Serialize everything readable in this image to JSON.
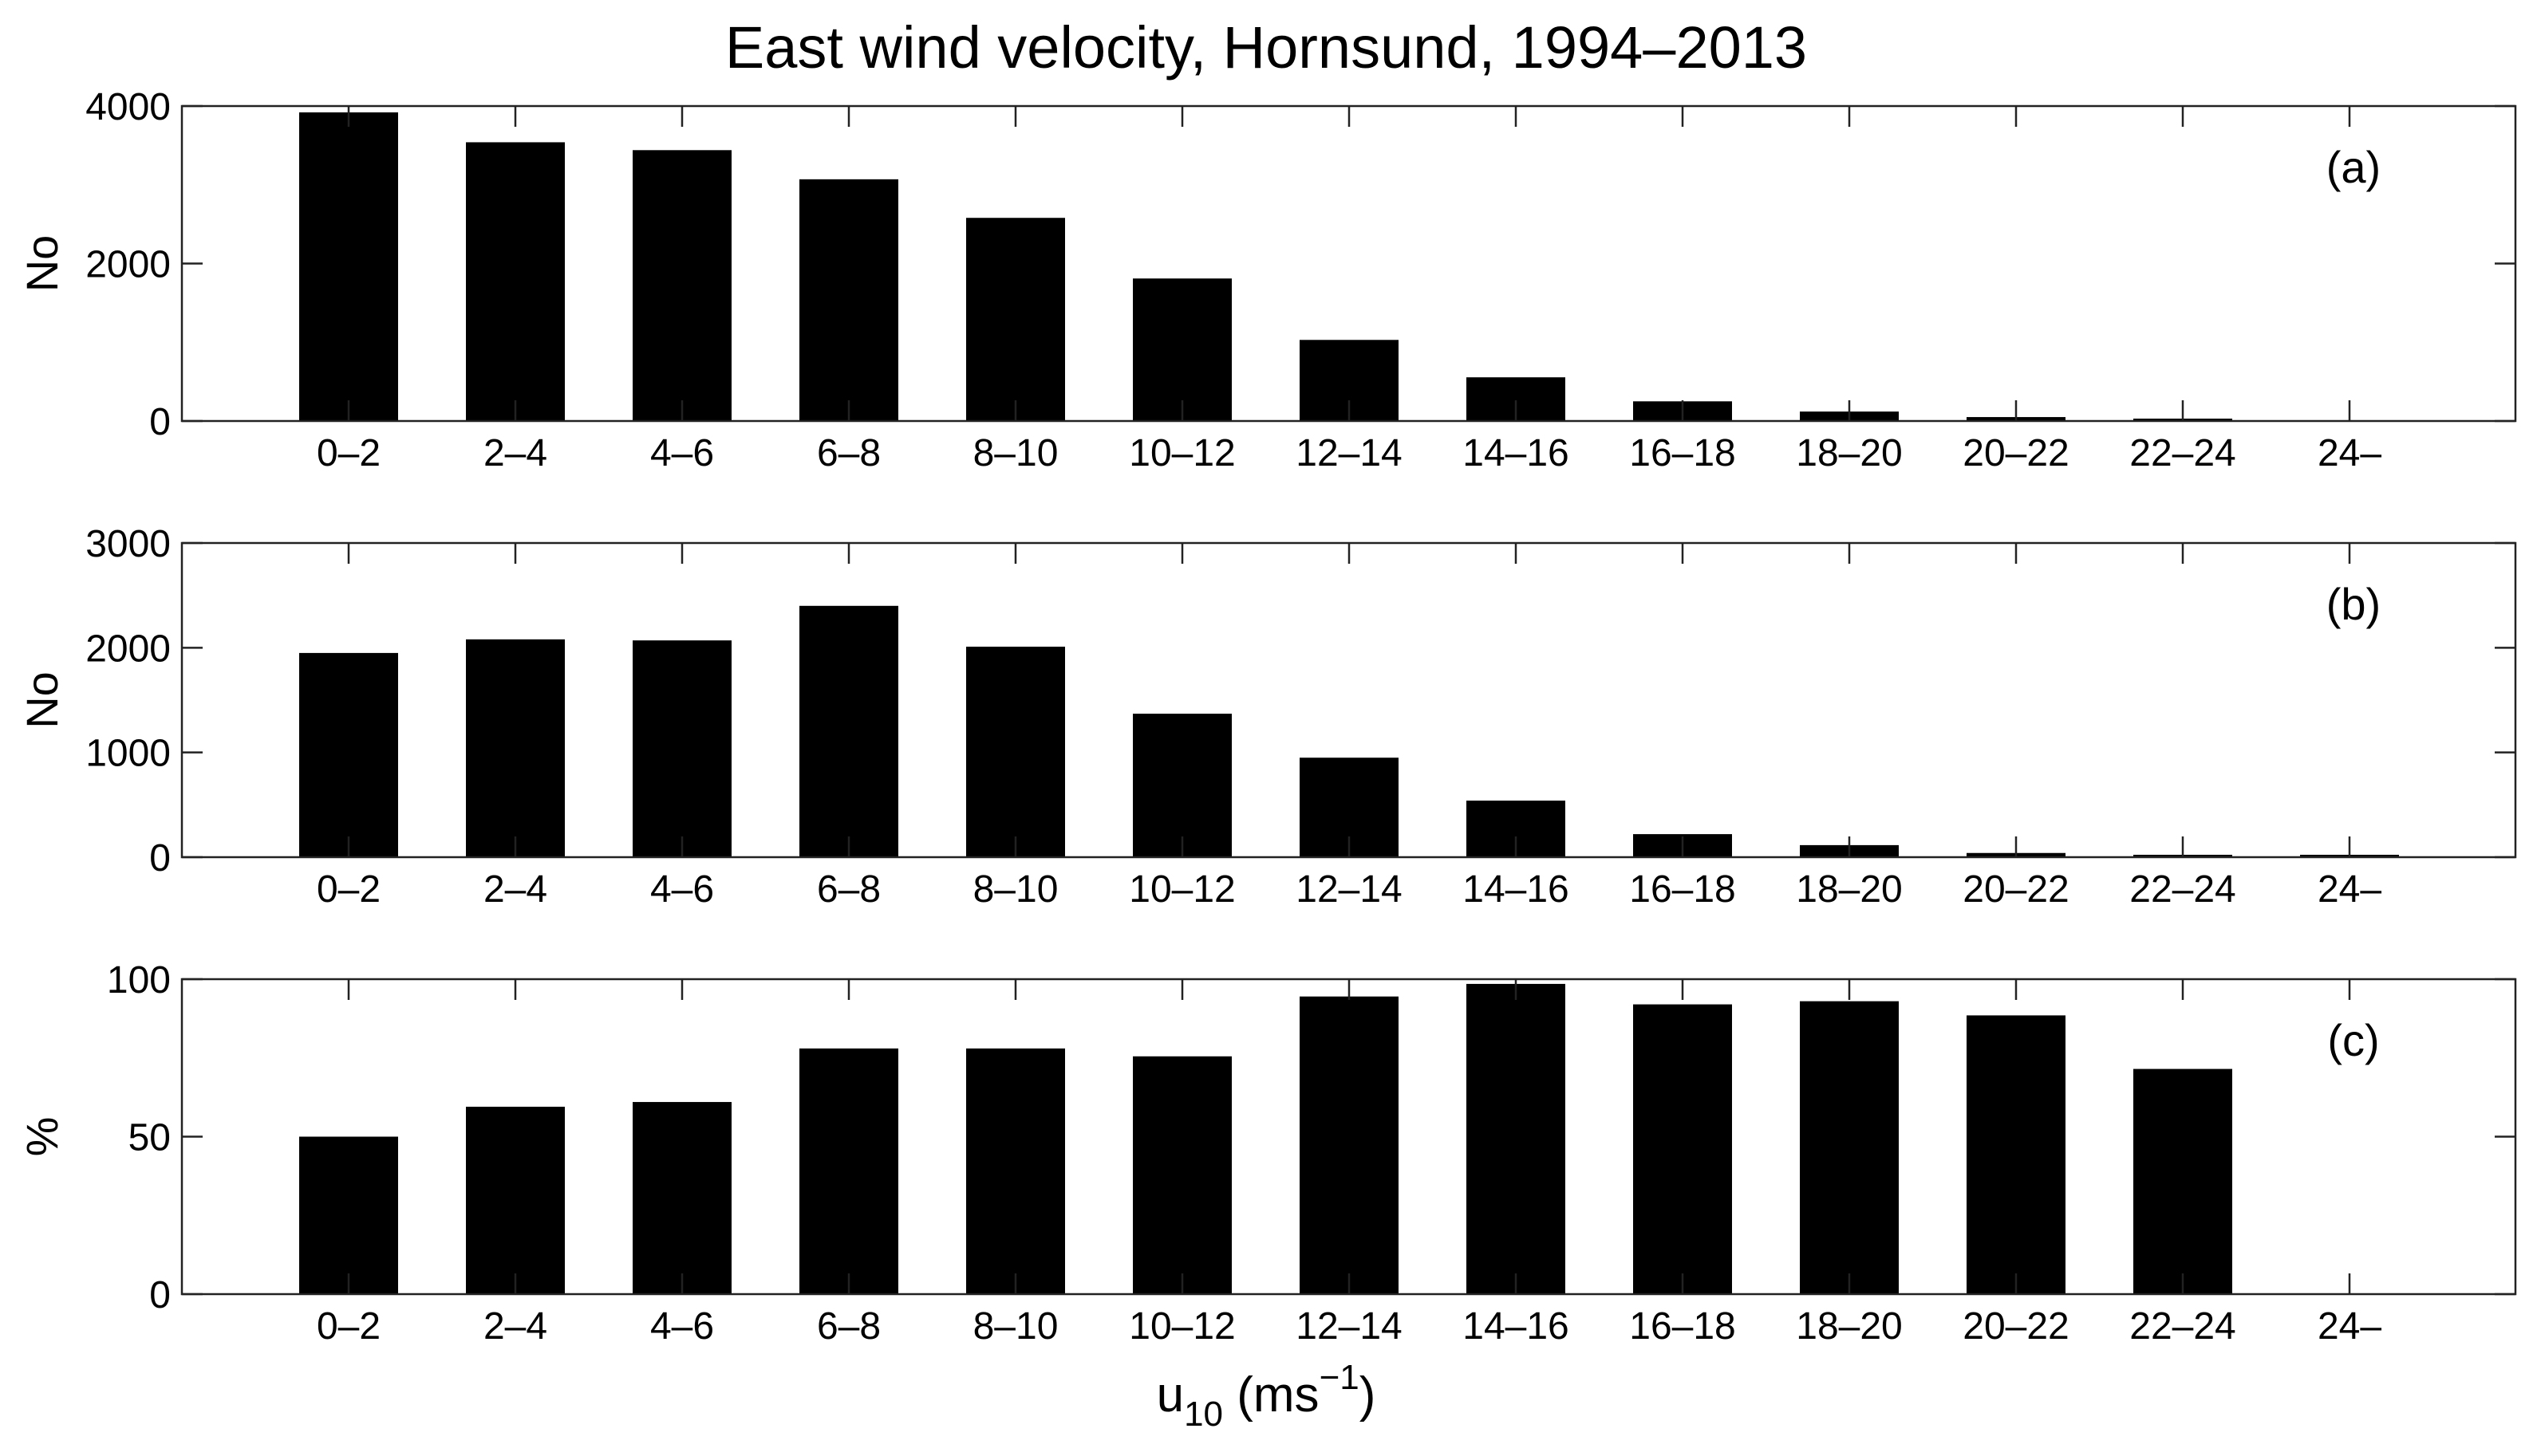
{
  "chart_data": {
    "title": "East wind velocity, Hornsund, 1994–2013",
    "xlabel": {
      "main": "u",
      "sub": "10",
      "unit_prefix": " (ms",
      "unit_exp": "−1",
      "unit_suffix": ")"
    },
    "categories": [
      "0–2",
      "2–4",
      "4–6",
      "6–8",
      "8–10",
      "10–12",
      "12–14",
      "14–16",
      "16–18",
      "18–20",
      "20–22",
      "22–24",
      "24–"
    ],
    "bar_color": "#000000",
    "panels": [
      {
        "type": "bar",
        "label": "(a)",
        "ylabel": "No",
        "ylim": [
          0,
          4000
        ],
        "yticks": [
          0,
          2000,
          4000
        ],
        "values": [
          3920,
          3540,
          3440,
          3070,
          2580,
          1810,
          1030,
          555,
          250,
          120,
          50,
          22,
          0
        ]
      },
      {
        "type": "bar",
        "label": "(b)",
        "ylabel": "No",
        "ylim": [
          0,
          3000
        ],
        "yticks": [
          0,
          1000,
          2000,
          3000
        ],
        "values": [
          1950,
          2080,
          2070,
          2400,
          2010,
          1370,
          950,
          540,
          220,
          115,
          40,
          17,
          15
        ]
      },
      {
        "type": "bar",
        "label": "(c)",
        "ylabel": "%",
        "ylim": [
          0,
          100
        ],
        "yticks": [
          0,
          50,
          100
        ],
        "values": [
          50,
          59.5,
          61,
          78,
          78,
          75.5,
          94.5,
          98.5,
          92,
          93,
          88.5,
          71.5,
          0
        ]
      }
    ]
  }
}
